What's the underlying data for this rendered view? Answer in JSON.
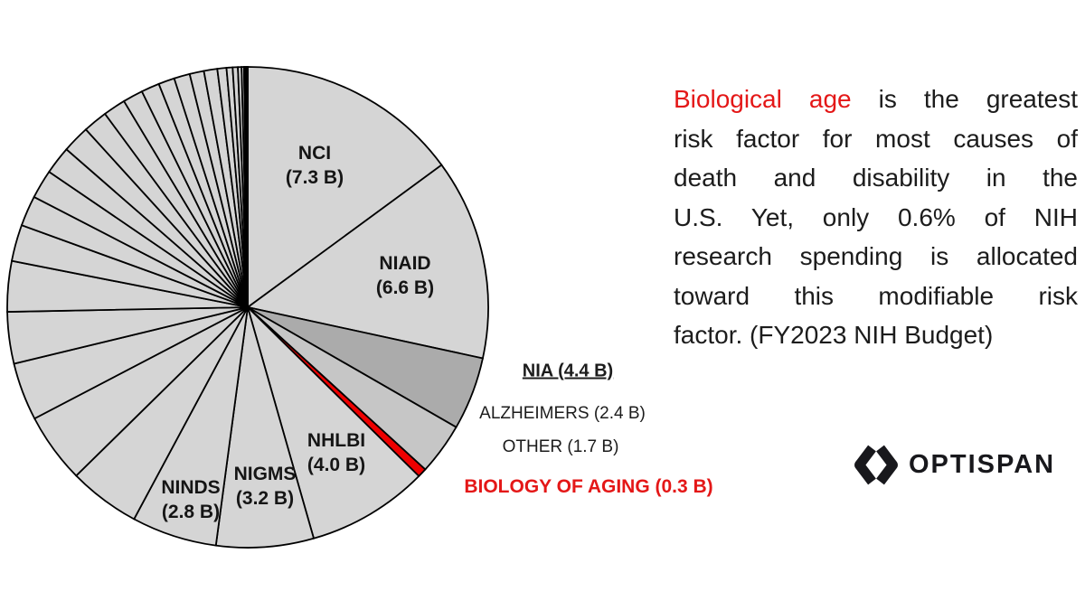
{
  "chart_data": {
    "type": "pie",
    "title": "FY2023 NIH Budget",
    "value_unit": "billion USD",
    "start_angle": "12 o'clock",
    "direction": "clockwise",
    "default_color": "#d5d5d5",
    "stroke_color": "#000000",
    "slices": [
      {
        "label": "NCI",
        "value": 7.3
      },
      {
        "label": "NIAID",
        "value": 6.6
      },
      {
        "label": "NIA ALZHEIMERS",
        "value": 2.4,
        "color": "#ababab"
      },
      {
        "label": "NIA OTHER",
        "value": 1.7,
        "color": "#c6c6c6"
      },
      {
        "label": "NIA BIOLOGY OF AGING",
        "value": 0.3,
        "color": "#ee0000"
      },
      {
        "label": "NHLBI",
        "value": 4.0
      },
      {
        "label": "NIGMS",
        "value": 3.2
      },
      {
        "label": "NINDS",
        "value": 2.8
      },
      {
        "label": "other NIH institutes (unlabeled)",
        "values": [
          2.35,
          2.3,
          1.9,
          1.7,
          1.66,
          1.2,
          1.0,
          0.95,
          0.92,
          0.9,
          0.8,
          0.74,
          0.66,
          0.6,
          0.53,
          0.52,
          0.47,
          0.44,
          0.3,
          0.2,
          0.17,
          0.12,
          0.08,
          0.05,
          0.04,
          0.03
        ]
      }
    ]
  },
  "pie_labels": {
    "nci": "NCI\n(7.3 B)",
    "niaid": "NIAID\n(6.6 B)",
    "nhlbi": "NHLBI\n(4.0 B)",
    "nigms": "NIGMS\n(3.2 B)",
    "ninds": "NINDS\n(2.8 B)"
  },
  "side_labels": {
    "nia": "NIA (4.4 B)",
    "alzheimers": "ALZHEIMERS (2.4 B)",
    "other": "OTHER (1.7 B)",
    "biology_of_aging": "BIOLOGY OF AGING (0.3 B)"
  },
  "paragraph": {
    "highlight": "Biological age",
    "line1_rest": "is the greatest",
    "lines": [
      "risk factor for most causes of",
      "death and disability in the",
      "U.S. Yet, only 0.6% of NIH",
      "research spending is allocated",
      "toward this modifiable risk",
      "factor. (FY2023 NIH Budget)"
    ]
  },
  "logo": {
    "text": "OPTISPAN"
  },
  "colors": {
    "accent_red_text": "#e41717",
    "slice_red": "#ee0000",
    "slice_dark_gray": "#ababab",
    "slice_mid_gray": "#c6c6c6",
    "slice_light_gray": "#d5d5d5",
    "body_text": "#1c1c1c",
    "logo_color": "#18181c"
  }
}
